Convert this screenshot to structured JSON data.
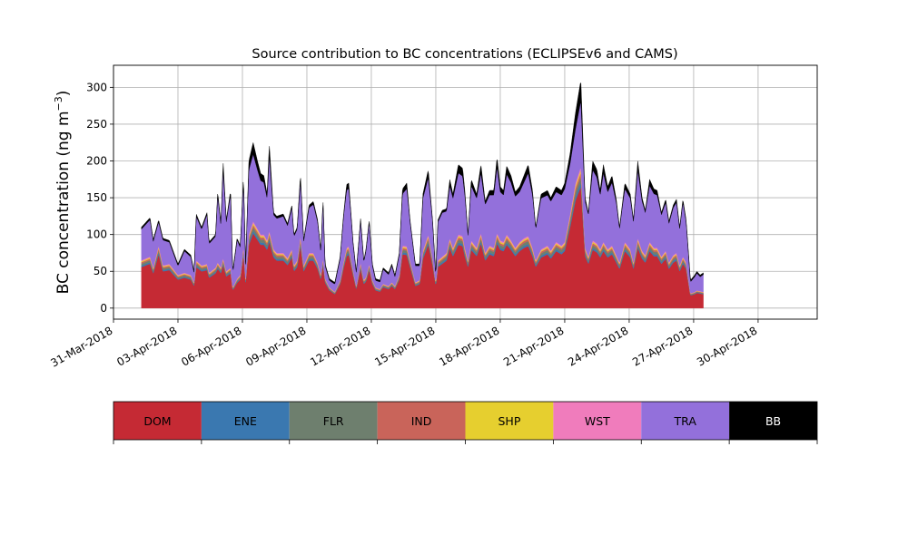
{
  "chart_data": {
    "type": "area",
    "title": "Source contribution to BC concentrations (ECLIPSEv6 and CAMS)",
    "ylabel": "BC concentration (ng m",
    "ylabel_sup": "−3",
    "ylabel_close": ")",
    "xlabel": "",
    "ylim": [
      -15,
      330
    ],
    "yticks": [
      0,
      50,
      100,
      150,
      200,
      250,
      300
    ],
    "xlim": [
      "2018-03-31T00:00",
      "2018-05-02T18:00"
    ],
    "xticks": [
      "31-Mar-2018",
      "03-Apr-2018",
      "06-Apr-2018",
      "09-Apr-2018",
      "12-Apr-2018",
      "15-Apr-2018",
      "18-Apr-2018",
      "21-Apr-2018",
      "24-Apr-2018",
      "27-Apr-2018",
      "30-Apr-2018"
    ],
    "grid": true,
    "legend_position": "bottom",
    "stacking_order": [
      "DOM",
      "ENE",
      "FLR",
      "IND",
      "SHP",
      "WST",
      "TRA",
      "BB"
    ],
    "series": [
      {
        "name": "DOM",
        "color": "#c52a34",
        "text_color": "#000000"
      },
      {
        "name": "ENE",
        "color": "#3a78b0",
        "text_color": "#000000"
      },
      {
        "name": "FLR",
        "color": "#6e7f6e",
        "text_color": "#000000"
      },
      {
        "name": "IND",
        "color": "#c9645a",
        "text_color": "#000000"
      },
      {
        "name": "SHP",
        "color": "#e6cf2f",
        "text_color": "#000000"
      },
      {
        "name": "WST",
        "color": "#f07cbc",
        "text_color": "#000000"
      },
      {
        "name": "TRA",
        "color": "#9370db",
        "text_color": "#000000"
      },
      {
        "name": "BB",
        "color": "#000000",
        "text_color": "#ffffff"
      }
    ],
    "keyframes_days_since_start": [
      [
        1.3,
        110,
        65
      ],
      [
        1.7,
        123,
        70
      ],
      [
        1.85,
        93,
        55
      ],
      [
        2.1,
        120,
        85
      ],
      [
        2.3,
        95,
        58
      ],
      [
        2.6,
        92,
        60
      ],
      [
        3.0,
        60,
        45
      ],
      [
        3.3,
        80,
        48
      ],
      [
        3.6,
        72,
        45
      ],
      [
        3.75,
        50,
        35
      ],
      [
        3.85,
        128,
        65
      ],
      [
        4.1,
        110,
        58
      ],
      [
        4.35,
        130,
        60
      ],
      [
        4.45,
        90,
        48
      ],
      [
        4.75,
        100,
        55
      ],
      [
        4.85,
        158,
        62
      ],
      [
        5.0,
        115,
        55
      ],
      [
        5.1,
        200,
        68
      ],
      [
        5.25,
        120,
        50
      ],
      [
        5.45,
        160,
        55
      ],
      [
        5.55,
        50,
        28
      ],
      [
        5.75,
        95,
        40
      ],
      [
        5.9,
        85,
        45
      ],
      [
        6.05,
        180,
        85
      ],
      [
        6.15,
        60,
        40
      ],
      [
        6.3,
        200,
        100
      ],
      [
        6.5,
        225,
        118
      ],
      [
        6.7,
        200,
        108
      ],
      [
        6.85,
        183,
        100
      ],
      [
        7.0,
        180,
        100
      ],
      [
        7.15,
        155,
        92
      ],
      [
        7.25,
        223,
        105
      ],
      [
        7.45,
        130,
        80
      ],
      [
        7.6,
        125,
        75
      ],
      [
        7.9,
        128,
        75
      ],
      [
        8.1,
        115,
        68
      ],
      [
        8.3,
        140,
        80
      ],
      [
        8.4,
        100,
        58
      ],
      [
        8.55,
        110,
        65
      ],
      [
        8.7,
        182,
        98
      ],
      [
        8.85,
        93,
        58
      ],
      [
        9.1,
        140,
        75
      ],
      [
        9.3,
        145,
        75
      ],
      [
        9.5,
        120,
        62
      ],
      [
        9.65,
        78,
        45
      ],
      [
        9.75,
        148,
        68
      ],
      [
        9.85,
        60,
        40
      ],
      [
        10.05,
        40,
        28
      ],
      [
        10.3,
        35,
        22
      ],
      [
        10.55,
        70,
        38
      ],
      [
        10.7,
        125,
        62
      ],
      [
        10.85,
        168,
        82
      ],
      [
        10.95,
        170,
        84
      ],
      [
        11.15,
        90,
        52
      ],
      [
        11.3,
        50,
        30
      ],
      [
        11.5,
        122,
        62
      ],
      [
        11.65,
        65,
        38
      ],
      [
        11.75,
        80,
        42
      ],
      [
        11.9,
        120,
        60
      ],
      [
        12.05,
        60,
        38
      ],
      [
        12.2,
        40,
        28
      ],
      [
        12.4,
        38,
        26
      ],
      [
        12.55,
        55,
        33
      ],
      [
        12.8,
        48,
        30
      ],
      [
        12.95,
        60,
        35
      ],
      [
        13.1,
        45,
        30
      ],
      [
        13.3,
        75,
        45
      ],
      [
        13.45,
        162,
        85
      ],
      [
        13.65,
        170,
        84
      ],
      [
        13.8,
        120,
        65
      ],
      [
        14.05,
        60,
        35
      ],
      [
        14.25,
        60,
        38
      ],
      [
        14.4,
        155,
        78
      ],
      [
        14.65,
        188,
        100
      ],
      [
        14.85,
        120,
        68
      ],
      [
        15.0,
        45,
        35
      ],
      [
        15.1,
        120,
        65
      ],
      [
        15.3,
        133,
        70
      ],
      [
        15.5,
        135,
        75
      ],
      [
        15.65,
        175,
        95
      ],
      [
        15.8,
        155,
        82
      ],
      [
        16.05,
        195,
        100
      ],
      [
        16.25,
        190,
        98
      ],
      [
        16.35,
        160,
        82
      ],
      [
        16.5,
        100,
        65
      ],
      [
        16.65,
        175,
        92
      ],
      [
        16.9,
        155,
        82
      ],
      [
        17.1,
        195,
        102
      ],
      [
        17.3,
        145,
        75
      ],
      [
        17.5,
        160,
        85
      ],
      [
        17.7,
        160,
        82
      ],
      [
        17.85,
        205,
        102
      ],
      [
        18.0,
        165,
        92
      ],
      [
        18.15,
        160,
        90
      ],
      [
        18.3,
        193,
        100
      ],
      [
        18.5,
        180,
        92
      ],
      [
        18.7,
        158,
        82
      ],
      [
        18.9,
        165,
        90
      ],
      [
        19.1,
        180,
        95
      ],
      [
        19.3,
        195,
        98
      ],
      [
        19.5,
        160,
        82
      ],
      [
        19.65,
        110,
        65
      ],
      [
        19.9,
        155,
        80
      ],
      [
        20.2,
        160,
        85
      ],
      [
        20.35,
        150,
        78
      ],
      [
        20.6,
        165,
        90
      ],
      [
        20.85,
        160,
        85
      ],
      [
        21.0,
        170,
        90
      ],
      [
        21.25,
        210,
        128
      ],
      [
        21.5,
        265,
        170
      ],
      [
        21.75,
        310,
        192
      ],
      [
        21.95,
        150,
        82
      ],
      [
        22.1,
        130,
        70
      ],
      [
        22.3,
        200,
        92
      ],
      [
        22.5,
        188,
        88
      ],
      [
        22.65,
        160,
        80
      ],
      [
        22.8,
        195,
        90
      ],
      [
        23.0,
        165,
        80
      ],
      [
        23.2,
        180,
        85
      ],
      [
        23.4,
        148,
        72
      ],
      [
        23.55,
        110,
        62
      ],
      [
        23.8,
        170,
        90
      ],
      [
        24.05,
        155,
        80
      ],
      [
        24.2,
        120,
        62
      ],
      [
        24.4,
        200,
        95
      ],
      [
        24.6,
        150,
        78
      ],
      [
        24.75,
        133,
        72
      ],
      [
        24.95,
        175,
        90
      ],
      [
        25.15,
        162,
        82
      ],
      [
        25.3,
        160,
        82
      ],
      [
        25.5,
        130,
        70
      ],
      [
        25.7,
        148,
        78
      ],
      [
        25.85,
        118,
        62
      ],
      [
        26.05,
        140,
        72
      ],
      [
        26.2,
        148,
        75
      ],
      [
        26.35,
        110,
        58
      ],
      [
        26.5,
        148,
        70
      ],
      [
        26.65,
        120,
        62
      ],
      [
        26.85,
        38,
        20
      ],
      [
        27.05,
        45,
        22
      ],
      [
        27.15,
        50,
        24
      ],
      [
        27.3,
        45,
        23
      ],
      [
        27.45,
        48,
        22
      ]
    ],
    "layer_fractions_of_non_tra": {
      "DOM": 0.86,
      "ENE": 0.03,
      "FLR": 0.04,
      "IND": 0.03,
      "SHP": 0.02,
      "WST": 0.02
    }
  }
}
